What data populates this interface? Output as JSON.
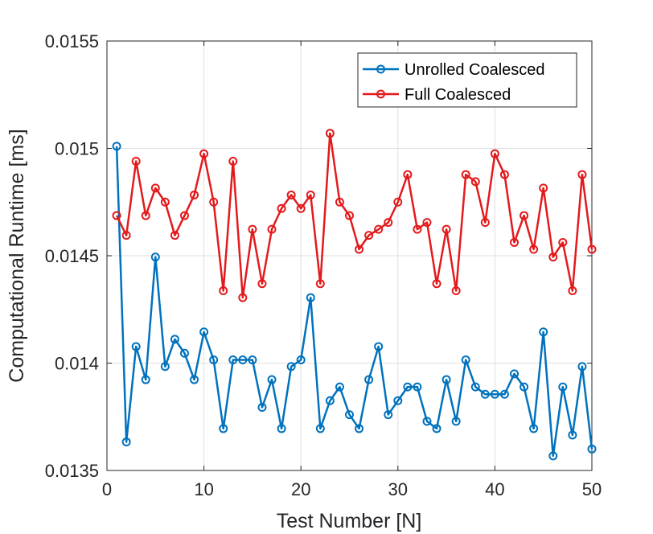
{
  "chart_data": {
    "type": "line",
    "title": "",
    "xlabel": "Test Number [N]",
    "ylabel": "Computational Runtime [ms]",
    "xlim": [
      0,
      50
    ],
    "ylim": [
      0.0135,
      0.0155
    ],
    "xticks": [
      0,
      10,
      20,
      30,
      40,
      50
    ],
    "yticks": [
      0.0135,
      0.014,
      0.0145,
      0.015,
      0.0155
    ],
    "ytick_labels": [
      "0.0135",
      "0.014",
      "0.0145",
      "0.015",
      "0.0155"
    ],
    "grid": true,
    "legend_position": "top-right",
    "x": [
      1,
      2,
      3,
      4,
      5,
      6,
      7,
      8,
      9,
      10,
      11,
      12,
      13,
      14,
      15,
      16,
      17,
      18,
      19,
      20,
      21,
      22,
      23,
      24,
      25,
      26,
      27,
      28,
      29,
      30,
      31,
      32,
      33,
      34,
      35,
      36,
      37,
      38,
      39,
      40,
      41,
      42,
      43,
      44,
      45,
      46,
      47,
      48,
      49,
      50
    ],
    "series": [
      {
        "name": "Unrolled Coalesced",
        "color": "#0072BD",
        "marker": "circle",
        "values": [
          0.01501,
          0.013633,
          0.014077,
          0.013923,
          0.014494,
          0.013984,
          0.014111,
          0.014046,
          0.013923,
          0.014145,
          0.014015,
          0.013695,
          0.014015,
          0.014015,
          0.014015,
          0.013794,
          0.013923,
          0.013695,
          0.013984,
          0.014015,
          0.014305,
          0.013695,
          0.013825,
          0.013889,
          0.01376,
          0.013695,
          0.013923,
          0.014077,
          0.01376,
          0.013825,
          0.013889,
          0.013889,
          0.013729,
          0.013695,
          0.013923,
          0.013729,
          0.014015,
          0.013889,
          0.013855,
          0.013855,
          0.013855,
          0.01395,
          0.013889,
          0.013695,
          0.014145,
          0.013568,
          0.013889,
          0.013665,
          0.013984,
          0.0136
        ]
      },
      {
        "name": "Full Coalesced",
        "color": "#E31A1C",
        "marker": "circle",
        "values": [
          0.014687,
          0.014595,
          0.01494,
          0.014687,
          0.014815,
          0.01475,
          0.014595,
          0.014687,
          0.014783,
          0.014975,
          0.01475,
          0.014337,
          0.01494,
          0.014305,
          0.014623,
          0.01437,
          0.014623,
          0.01472,
          0.014783,
          0.01472,
          0.014783,
          0.01437,
          0.01507,
          0.01475,
          0.014687,
          0.01453,
          0.014595,
          0.014623,
          0.014655,
          0.01475,
          0.014878,
          0.014623,
          0.014655,
          0.01437,
          0.014623,
          0.014337,
          0.014878,
          0.014845,
          0.014655,
          0.014975,
          0.014878,
          0.014562,
          0.014687,
          0.01453,
          0.014815,
          0.014494,
          0.014562,
          0.014337,
          0.014878,
          0.01453
        ]
      }
    ]
  }
}
